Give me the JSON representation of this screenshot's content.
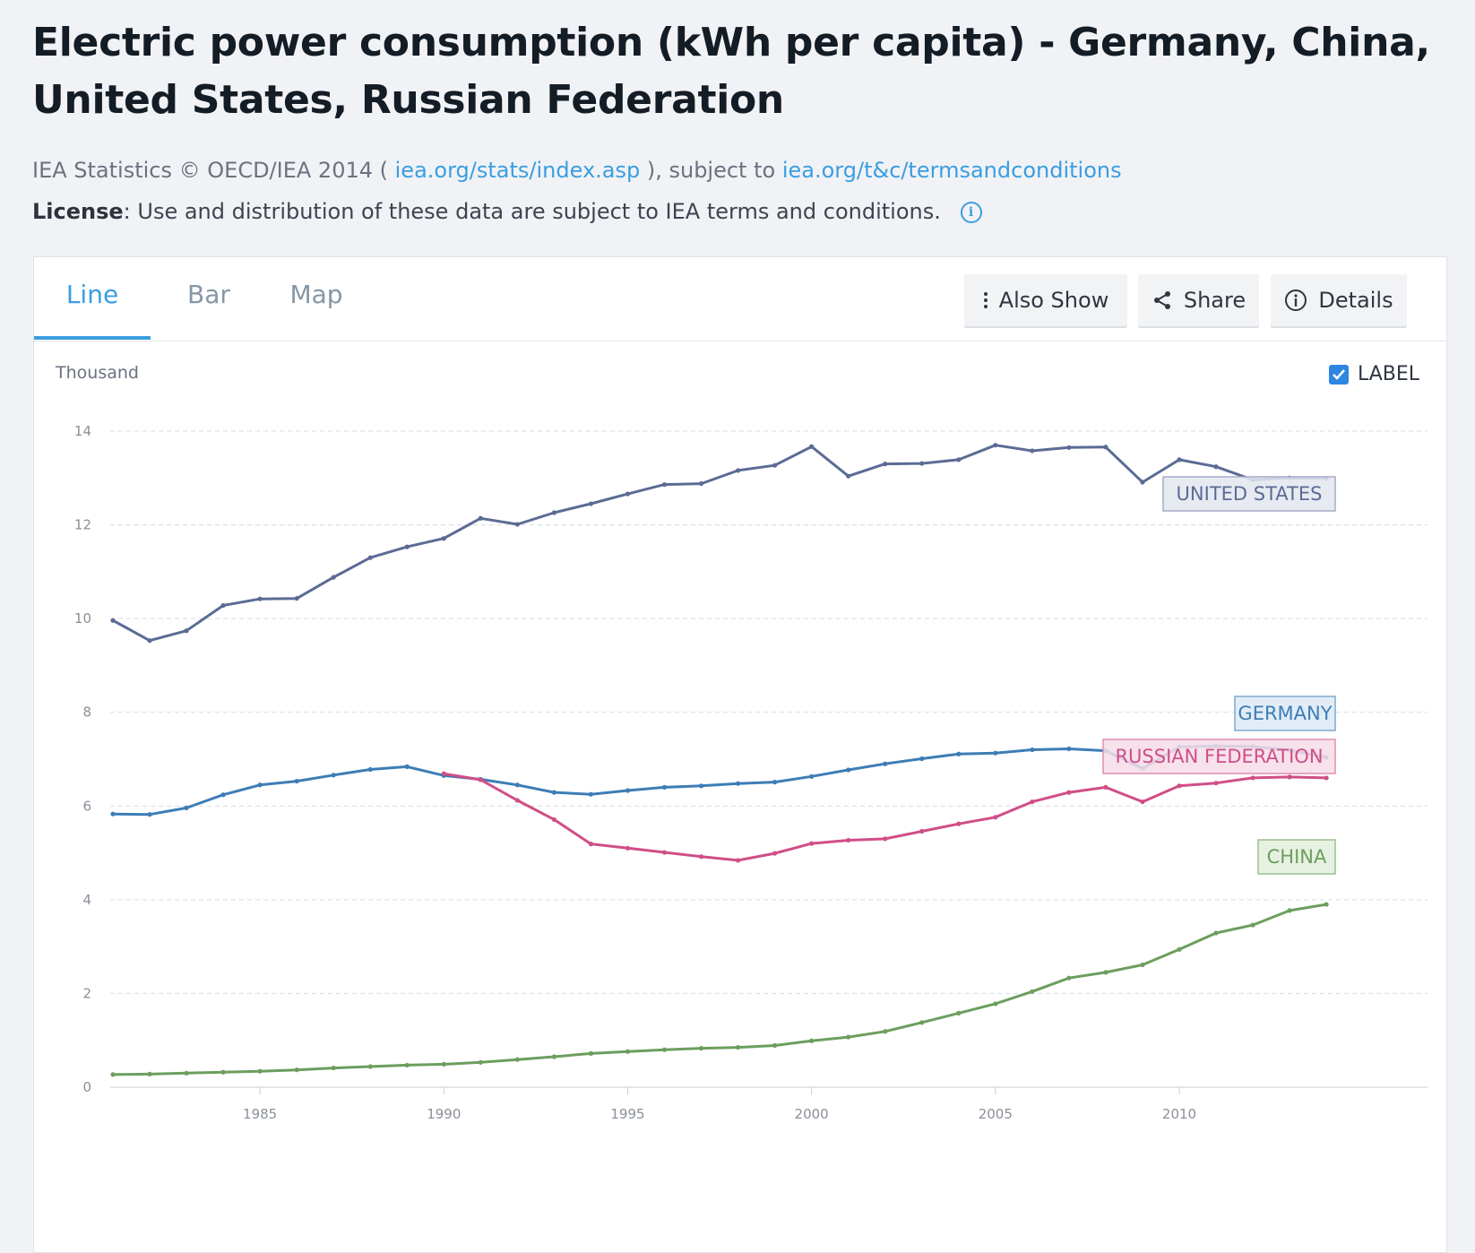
{
  "page": {
    "title": "Electric power consumption (kWh per capita) - Germany, China, United States, Russian Federation",
    "source_prefix": "IEA Statistics © OECD/IEA 2014 (",
    "source_link": "iea.org/stats/index.asp",
    "source_middle": "), subject to",
    "terms_link": "iea.org/t&c/termsandconditions",
    "license_label": "License",
    "license_text": ": Use and distribution of these data are subject to IEA terms and conditions.",
    "info_icon": "i"
  },
  "tabs": [
    {
      "label": "Line",
      "active": true
    },
    {
      "label": "Bar",
      "active": false
    },
    {
      "label": "Map",
      "active": false
    }
  ],
  "toolbar": {
    "also_show": "Also Show",
    "share": "Share",
    "details": "Details"
  },
  "chart_controls": {
    "units_label": "Thousand",
    "label_toggle": "LABEL",
    "label_checked": true
  },
  "chart_data": {
    "type": "line",
    "title": "Electric power consumption (kWh per capita) - Germany, China, United States, Russian Federation",
    "ylabel": "Thousand",
    "ylim": [
      0,
      14
    ],
    "xlim": [
      1981,
      2014
    ],
    "yticks": [
      0,
      2,
      4,
      6,
      8,
      10,
      12,
      14
    ],
    "xticks": [
      1985,
      1990,
      1995,
      2000,
      2005,
      2010
    ],
    "grid": "horizontal dashed",
    "series": [
      {
        "name": "UNITED STATES",
        "color": "#5b6b94",
        "x": [
          1981,
          1982,
          1983,
          1984,
          1985,
          1986,
          1987,
          1988,
          1989,
          1990,
          1991,
          1992,
          1993,
          1994,
          1995,
          1996,
          1997,
          1998,
          1999,
          2000,
          2001,
          2002,
          2003,
          2004,
          2005,
          2006,
          2007,
          2008,
          2009,
          2010,
          2011,
          2012,
          2013,
          2014
        ],
        "values": [
          9.96,
          9.53,
          9.74,
          10.28,
          10.42,
          10.43,
          10.88,
          11.3,
          11.53,
          11.71,
          12.14,
          12.01,
          12.26,
          12.45,
          12.66,
          12.86,
          12.88,
          13.16,
          13.27,
          13.67,
          13.04,
          13.3,
          13.31,
          13.39,
          13.7,
          13.58,
          13.65,
          13.66,
          12.91,
          13.39,
          13.24,
          12.96,
          13.0,
          12.99
        ]
      },
      {
        "name": "GERMANY",
        "color": "#3d7db5",
        "x": [
          1981,
          1982,
          1983,
          1984,
          1985,
          1986,
          1987,
          1988,
          1989,
          1990,
          1991,
          1992,
          1993,
          1994,
          1995,
          1996,
          1997,
          1998,
          1999,
          2000,
          2001,
          2002,
          2003,
          2004,
          2005,
          2006,
          2007,
          2008,
          2009,
          2010,
          2011,
          2012,
          2013,
          2014
        ],
        "values": [
          5.83,
          5.82,
          5.96,
          6.24,
          6.45,
          6.53,
          6.66,
          6.78,
          6.84,
          6.65,
          6.57,
          6.45,
          6.29,
          6.25,
          6.33,
          6.4,
          6.43,
          6.48,
          6.51,
          6.63,
          6.77,
          6.9,
          7.01,
          7.11,
          7.13,
          7.2,
          7.22,
          7.18,
          6.8,
          7.26,
          7.28,
          7.27,
          7.19,
          7.04
        ]
      },
      {
        "name": "RUSSIAN FEDERATION",
        "color": "#d04e88",
        "x": [
          1990,
          1991,
          1992,
          1993,
          1994,
          1995,
          1996,
          1997,
          1998,
          1999,
          2000,
          2001,
          2002,
          2003,
          2004,
          2005,
          2006,
          2007,
          2008,
          2009,
          2010,
          2011,
          2012,
          2013,
          2014
        ],
        "values": [
          6.69,
          6.56,
          6.12,
          5.71,
          5.19,
          5.1,
          5.01,
          4.92,
          4.84,
          4.99,
          5.2,
          5.27,
          5.3,
          5.46,
          5.62,
          5.76,
          6.09,
          6.29,
          6.4,
          6.09,
          6.43,
          6.49,
          6.6,
          6.62,
          6.6
        ]
      },
      {
        "name": "CHINA",
        "color": "#6c9e5e",
        "x": [
          1981,
          1982,
          1983,
          1984,
          1985,
          1986,
          1987,
          1988,
          1989,
          1990,
          1991,
          1992,
          1993,
          1994,
          1995,
          1996,
          1997,
          1998,
          1999,
          2000,
          2001,
          2002,
          2003,
          2004,
          2005,
          2006,
          2007,
          2008,
          2009,
          2010,
          2011,
          2012,
          2013,
          2014
        ],
        "values": [
          0.27,
          0.28,
          0.3,
          0.32,
          0.34,
          0.37,
          0.41,
          0.44,
          0.47,
          0.49,
          0.53,
          0.59,
          0.65,
          0.72,
          0.76,
          0.8,
          0.83,
          0.85,
          0.89,
          0.99,
          1.07,
          1.19,
          1.38,
          1.58,
          1.78,
          2.04,
          2.33,
          2.45,
          2.61,
          2.94,
          3.29,
          3.46,
          3.77,
          3.9
        ]
      }
    ]
  }
}
